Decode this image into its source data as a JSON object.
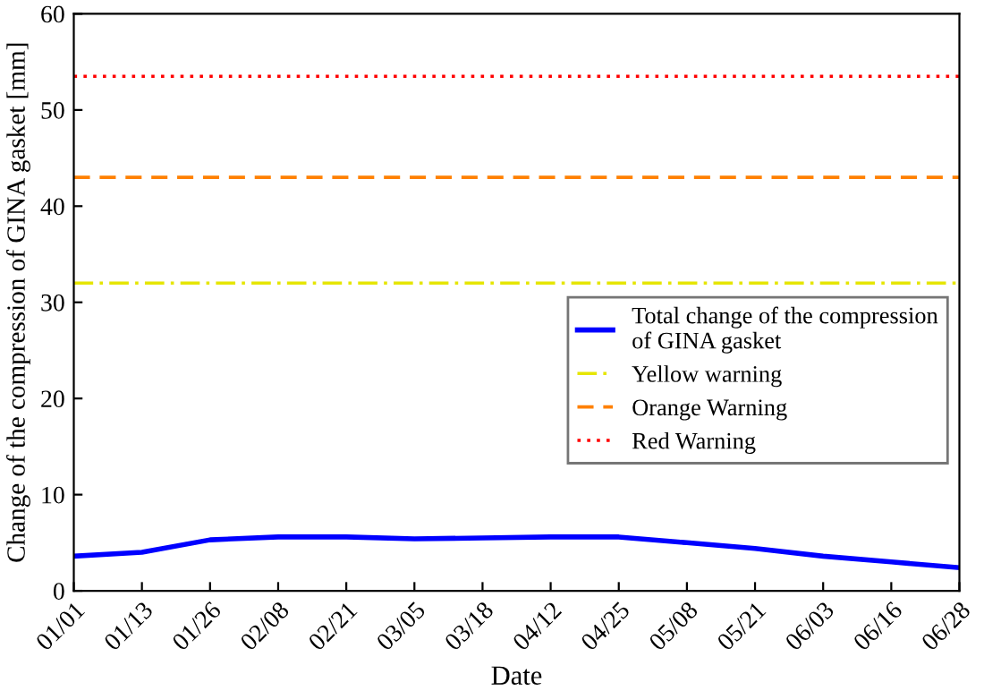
{
  "chart_data": {
    "type": "line",
    "xlabel": "Date",
    "ylabel": "Change of the compression of GINA gasket [mm]",
    "categories": [
      "01/01",
      "01/13",
      "01/26",
      "02/08",
      "02/21",
      "03/05",
      "03/18",
      "04/12",
      "04/25",
      "05/08",
      "05/21",
      "06/03",
      "06/16",
      "06/28"
    ],
    "series": [
      {
        "name": "Total change of the compression\nof GINA gasket",
        "color": "#0000ff",
        "values": [
          3.6,
          4.0,
          5.3,
          5.6,
          5.6,
          5.4,
          5.5,
          5.6,
          5.6,
          5.0,
          4.4,
          3.6,
          3.0,
          2.4
        ]
      }
    ],
    "ylim": [
      0,
      60
    ],
    "yticks": [
      0,
      10,
      20,
      30,
      40,
      50,
      60
    ],
    "ref_lines": [
      {
        "axis": "y",
        "value": 32,
        "label": "Yellow warning",
        "color": "#e6e600",
        "line_style": "dashdot"
      },
      {
        "axis": "y",
        "value": 43,
        "label": "Orange Warning",
        "color": "#ff8000",
        "line_style": "dashed"
      },
      {
        "axis": "y",
        "value": 53.5,
        "label": "Red Warning",
        "color": "#ff0000",
        "line_style": "dotted"
      }
    ],
    "legend": "center right",
    "grid": false,
    "marker": "none",
    "line_style": "solid"
  }
}
